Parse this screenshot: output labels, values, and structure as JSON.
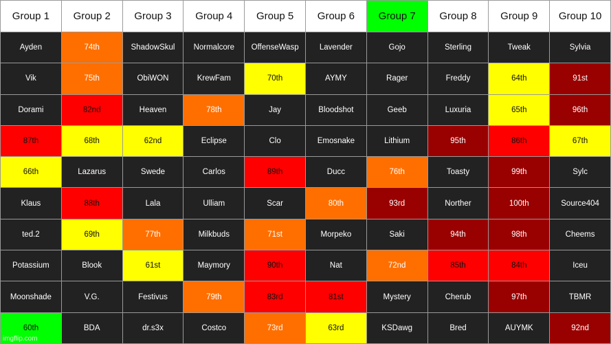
{
  "colors": {
    "dark": "#222222",
    "orange": "#ff6f00",
    "yellow": "#ffff00",
    "red": "#ff0000",
    "darkred": "#990000",
    "green": "#00ff00",
    "white": "#ffffff"
  },
  "headers": [
    {
      "label": "Group 1",
      "color": "white"
    },
    {
      "label": "Group 2",
      "color": "white"
    },
    {
      "label": "Group 3",
      "color": "white"
    },
    {
      "label": "Group 4",
      "color": "white"
    },
    {
      "label": "Group 5",
      "color": "white"
    },
    {
      "label": "Group 6",
      "color": "white"
    },
    {
      "label": "Group 7",
      "color": "green"
    },
    {
      "label": "Group 8",
      "color": "white"
    },
    {
      "label": "Group 9",
      "color": "white"
    },
    {
      "label": "Group 10",
      "color": "white"
    }
  ],
  "rows": [
    [
      {
        "text": "Ayden",
        "color": "dark"
      },
      {
        "text": "74th",
        "color": "orange"
      },
      {
        "text": "ShadowSkul",
        "color": "dark"
      },
      {
        "text": "Normalcore",
        "color": "dark"
      },
      {
        "text": "OffenseWasp",
        "color": "dark"
      },
      {
        "text": "Lavender",
        "color": "dark"
      },
      {
        "text": "Gojo",
        "color": "dark"
      },
      {
        "text": "Sterling",
        "color": "dark"
      },
      {
        "text": "Tweak",
        "color": "dark"
      },
      {
        "text": "Sylvia",
        "color": "dark"
      }
    ],
    [
      {
        "text": "Vik",
        "color": "dark"
      },
      {
        "text": "75th",
        "color": "orange"
      },
      {
        "text": "ObiWON",
        "color": "dark"
      },
      {
        "text": "KrewFam",
        "color": "dark"
      },
      {
        "text": "70th",
        "color": "yellow"
      },
      {
        "text": "AYMY",
        "color": "dark"
      },
      {
        "text": "Rager",
        "color": "dark"
      },
      {
        "text": "Freddy",
        "color": "dark"
      },
      {
        "text": "64th",
        "color": "yellow"
      },
      {
        "text": "91st",
        "color": "darkred"
      }
    ],
    [
      {
        "text": "Dorami",
        "color": "dark"
      },
      {
        "text": "82nd",
        "color": "red"
      },
      {
        "text": "Heaven",
        "color": "dark"
      },
      {
        "text": "78th",
        "color": "orange"
      },
      {
        "text": "Jay",
        "color": "dark"
      },
      {
        "text": "Bloodshot",
        "color": "dark"
      },
      {
        "text": "Geeb",
        "color": "dark"
      },
      {
        "text": "Luxuria",
        "color": "dark"
      },
      {
        "text": "65th",
        "color": "yellow"
      },
      {
        "text": "96th",
        "color": "darkred"
      }
    ],
    [
      {
        "text": "87th",
        "color": "red"
      },
      {
        "text": "68th",
        "color": "yellow"
      },
      {
        "text": "62nd",
        "color": "yellow"
      },
      {
        "text": "Eclipse",
        "color": "dark"
      },
      {
        "text": "Clo",
        "color": "dark"
      },
      {
        "text": "Emosnake",
        "color": "dark"
      },
      {
        "text": "Lithium",
        "color": "dark"
      },
      {
        "text": "95th",
        "color": "darkred"
      },
      {
        "text": "86th",
        "color": "red"
      },
      {
        "text": "67th",
        "color": "yellow"
      }
    ],
    [
      {
        "text": "66th",
        "color": "yellow"
      },
      {
        "text": "Lazarus",
        "color": "dark"
      },
      {
        "text": "Swede",
        "color": "dark"
      },
      {
        "text": "Carlos",
        "color": "dark"
      },
      {
        "text": "89th",
        "color": "red"
      },
      {
        "text": "Ducc",
        "color": "dark"
      },
      {
        "text": "76th",
        "color": "orange"
      },
      {
        "text": "Toasty",
        "color": "dark"
      },
      {
        "text": "99th",
        "color": "darkred"
      },
      {
        "text": "Sylc",
        "color": "dark"
      }
    ],
    [
      {
        "text": "Klaus",
        "color": "dark"
      },
      {
        "text": "88th",
        "color": "red"
      },
      {
        "text": "Lala",
        "color": "dark"
      },
      {
        "text": "Ulliam",
        "color": "dark"
      },
      {
        "text": "Scar",
        "color": "dark"
      },
      {
        "text": "80th",
        "color": "orange"
      },
      {
        "text": "93rd",
        "color": "darkred"
      },
      {
        "text": "Norther",
        "color": "dark"
      },
      {
        "text": "100th",
        "color": "darkred"
      },
      {
        "text": "Source404",
        "color": "dark"
      }
    ],
    [
      {
        "text": "ted.2",
        "color": "dark"
      },
      {
        "text": "69th",
        "color": "yellow"
      },
      {
        "text": "77th",
        "color": "orange"
      },
      {
        "text": "Milkbuds",
        "color": "dark"
      },
      {
        "text": "71st",
        "color": "orange"
      },
      {
        "text": "Morpeko",
        "color": "dark"
      },
      {
        "text": "Saki",
        "color": "dark"
      },
      {
        "text": "94th",
        "color": "darkred"
      },
      {
        "text": "98th",
        "color": "darkred"
      },
      {
        "text": "Cheems",
        "color": "dark"
      }
    ],
    [
      {
        "text": "Potassium",
        "color": "dark"
      },
      {
        "text": "Blook",
        "color": "dark"
      },
      {
        "text": "61st",
        "color": "yellow"
      },
      {
        "text": "Maymory",
        "color": "dark"
      },
      {
        "text": "90th",
        "color": "red"
      },
      {
        "text": "Nat",
        "color": "dark"
      },
      {
        "text": "72nd",
        "color": "orange"
      },
      {
        "text": "85th",
        "color": "red"
      },
      {
        "text": "84th",
        "color": "red"
      },
      {
        "text": "Iceu",
        "color": "dark"
      }
    ],
    [
      {
        "text": "Moonshade",
        "color": "dark"
      },
      {
        "text": "V.G.",
        "color": "dark"
      },
      {
        "text": "Festivus",
        "color": "dark"
      },
      {
        "text": "79th",
        "color": "orange"
      },
      {
        "text": "83rd",
        "color": "red"
      },
      {
        "text": "81st",
        "color": "red"
      },
      {
        "text": "Mystery",
        "color": "dark"
      },
      {
        "text": "Cherub",
        "color": "dark"
      },
      {
        "text": "97th",
        "color": "darkred"
      },
      {
        "text": "TBMR",
        "color": "dark"
      }
    ],
    [
      {
        "text": "60th",
        "color": "green"
      },
      {
        "text": "BDA",
        "color": "dark"
      },
      {
        "text": "dr.s3x",
        "color": "dark"
      },
      {
        "text": "Costco",
        "color": "dark"
      },
      {
        "text": "73rd",
        "color": "orange"
      },
      {
        "text": "63rd",
        "color": "yellow"
      },
      {
        "text": "KSDawg",
        "color": "dark"
      },
      {
        "text": "Bred",
        "color": "dark"
      },
      {
        "text": "AUYMK",
        "color": "dark"
      },
      {
        "text": "92nd",
        "color": "darkred"
      }
    ]
  ],
  "watermark": "imgflip.com"
}
